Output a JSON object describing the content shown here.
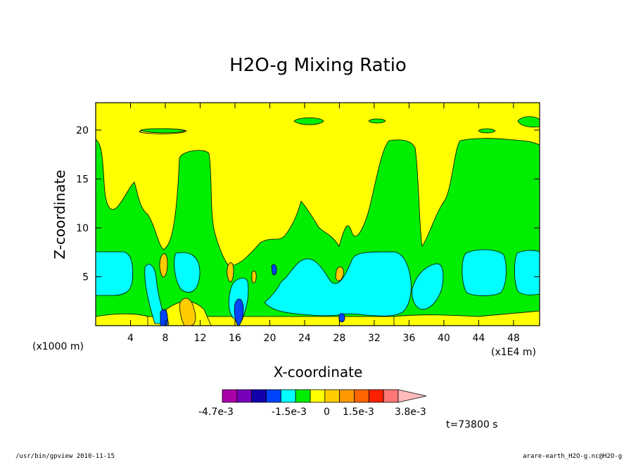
{
  "chart_data": {
    "type": "heatmap",
    "title": "H2O-g Mixing Ratio",
    "xlabel": "X-coordinate",
    "ylabel": "Z-coordinate",
    "x_ticks": [
      4,
      8,
      12,
      16,
      20,
      24,
      28,
      32,
      36,
      40,
      44,
      48
    ],
    "y_ticks": [
      5,
      10,
      15,
      20
    ],
    "xlim": [
      0,
      51
    ],
    "ylim": [
      0,
      22.8
    ],
    "x_unit_label": "(x1000 m)",
    "x_multiplier_label": "(x1E4 m)",
    "colorbar": {
      "colors": [
        "#aa00aa",
        "#7700bb",
        "#1100aa",
        "#0044ff",
        "#00ffff",
        "#00ee00",
        "#ffff00",
        "#ffcc00",
        "#ff9900",
        "#ff6600",
        "#ff2200",
        "#ff7777",
        "#ffbbbb"
      ],
      "labels": [
        "-4.7e-3",
        "-1.5e-3",
        "0",
        "1.5e-3",
        "3.8e-3"
      ]
    },
    "time_label": "t=73800 s",
    "description_regions": [
      {
        "level": "yellow",
        "note": "background field"
      }
    ]
  },
  "footer": {
    "left": "/usr/bin/gpview   2010-11-15",
    "right": "arare-earth_H2O-g.nc@H2O-g"
  }
}
